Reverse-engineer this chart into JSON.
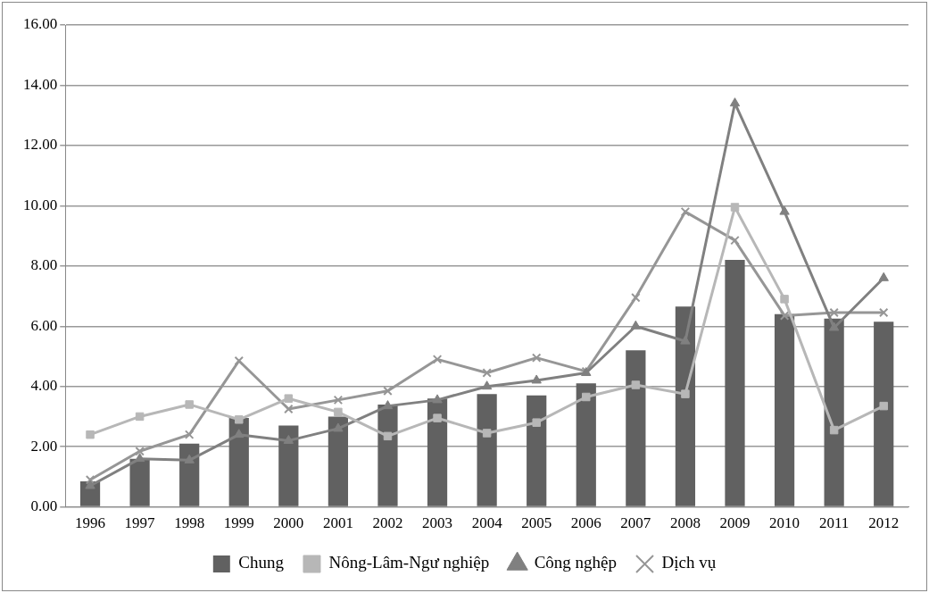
{
  "chart_data": {
    "type": "bar",
    "categories": [
      "1996",
      "1997",
      "1998",
      "1999",
      "2000",
      "2001",
      "2002",
      "2003",
      "2004",
      "2005",
      "2006",
      "2007",
      "2008",
      "2009",
      "2010",
      "2011",
      "2012"
    ],
    "series": [
      {
        "name": "Chung",
        "color": "#616161",
        "values": [
          0.85,
          1.6,
          2.1,
          2.95,
          2.7,
          3.0,
          3.4,
          3.6,
          3.75,
          3.7,
          4.1,
          5.2,
          6.65,
          8.2,
          6.4,
          6.25,
          6.15
        ]
      },
      {
        "name": "Nông-Lâm-Ngư nghiệp",
        "type": "line",
        "color": "#b7b7b7",
        "marker": "square",
        "values": [
          2.4,
          3.0,
          3.4,
          2.9,
          3.6,
          3.15,
          2.35,
          2.95,
          2.45,
          2.8,
          3.65,
          4.05,
          3.75,
          9.95,
          6.9,
          2.55,
          3.35
        ]
      },
      {
        "name": "Công nghệp",
        "type": "line",
        "color": "#808080",
        "marker": "triangle",
        "values": [
          0.7,
          1.6,
          1.55,
          2.4,
          2.2,
          2.6,
          3.35,
          3.55,
          4.0,
          4.2,
          4.45,
          6.0,
          5.5,
          13.4,
          9.8,
          5.95,
          7.6
        ]
      },
      {
        "name": "Dịch vụ",
        "type": "line",
        "color": "#969696",
        "marker": "cross",
        "values": [
          0.9,
          1.85,
          2.4,
          4.85,
          3.25,
          3.55,
          3.85,
          4.9,
          4.45,
          4.95,
          4.5,
          6.95,
          9.8,
          8.85,
          6.35,
          6.45,
          6.45
        ]
      }
    ],
    "ylim": [
      0,
      16
    ],
    "yticks": [
      {
        "value": 0,
        "label": "0.00"
      },
      {
        "value": 2,
        "label": "2.00"
      },
      {
        "value": 4,
        "label": "4.00"
      },
      {
        "value": 6,
        "label": "6.00"
      },
      {
        "value": 8,
        "label": "8.00"
      },
      {
        "value": 10,
        "label": "10.00"
      },
      {
        "value": 12,
        "label": "12.00"
      },
      {
        "value": 14,
        "label": "14.00"
      },
      {
        "value": 16,
        "label": "16.00"
      }
    ],
    "grid": "y",
    "legend": "bottom"
  }
}
